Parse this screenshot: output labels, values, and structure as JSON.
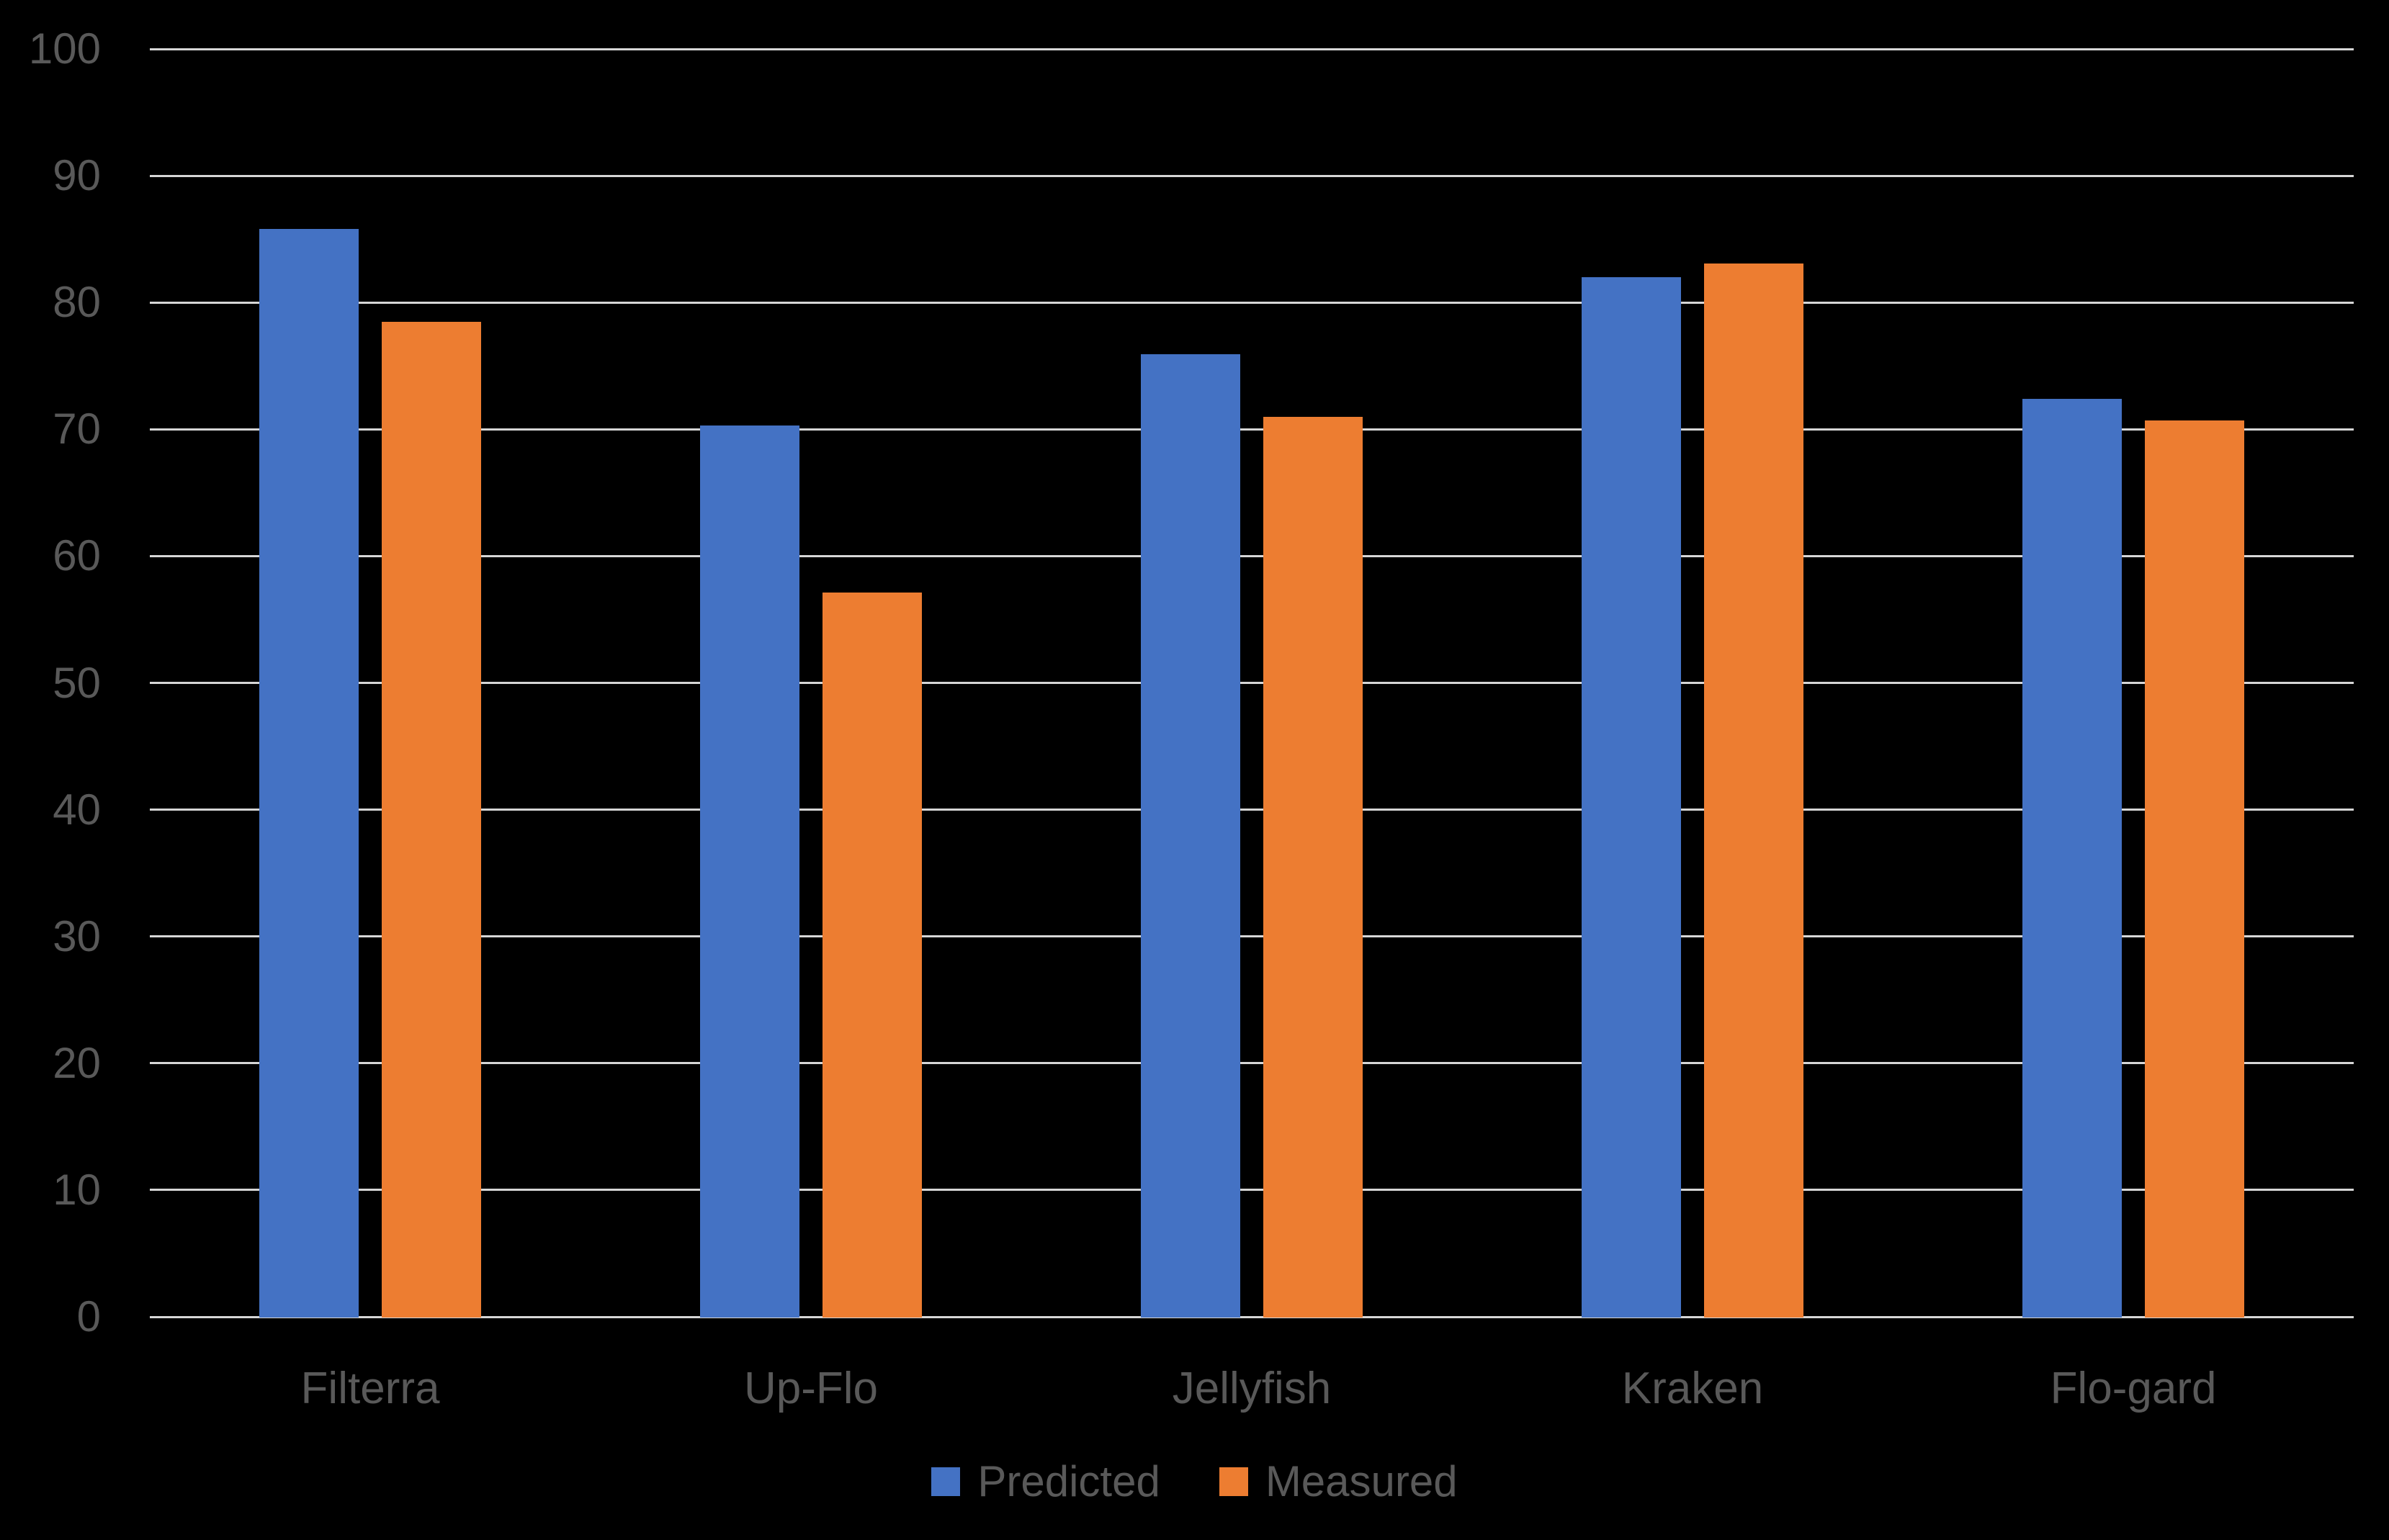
{
  "chart_data": {
    "type": "bar",
    "title": "",
    "xlabel": "",
    "ylabel": "",
    "categories": [
      "Filterra",
      "Up-Flo",
      "Jellyfish",
      "Kraken",
      "Flo-gard"
    ],
    "series": [
      {
        "name": "Predicted",
        "color": "#4472C4",
        "values": [
          85.8,
          70.3,
          75.9,
          82.0,
          72.4
        ]
      },
      {
        "name": "Measured",
        "color": "#ED7D31",
        "values": [
          78.5,
          57.1,
          71.0,
          83.1,
          70.7
        ]
      }
    ],
    "ylim": [
      0,
      100
    ],
    "yticks": [
      0,
      10,
      20,
      30,
      40,
      50,
      60,
      70,
      80,
      90,
      100
    ],
    "grid": true,
    "legend_position": "bottom",
    "background_color": "#000000",
    "gridline_color": "#d6d6d6",
    "label_color": "#595959"
  }
}
